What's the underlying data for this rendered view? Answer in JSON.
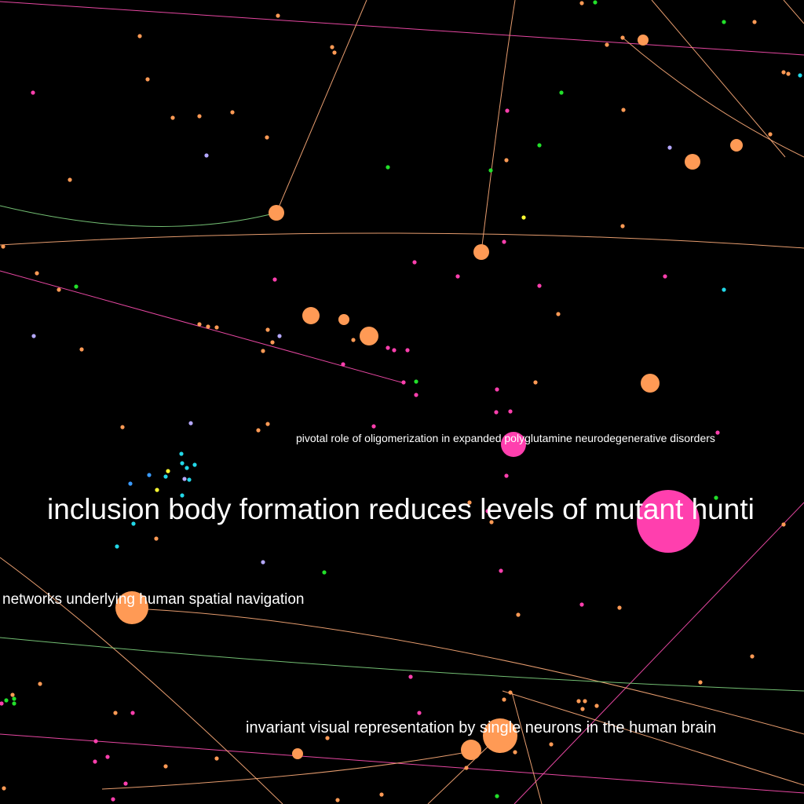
{
  "labels": {
    "main": "inclusion body formation reduces levels of mutant hunti",
    "pivotal": "pivotal role of oligomerization in expanded polyglutamine neurodegenerative disorders",
    "networks": "networks underlying human spatial navigation",
    "invariant": "invariant visual representation by single neurons in the human brain"
  },
  "colors": {
    "orange": "#ff9a55",
    "magenta": "#ff3fae",
    "green": "#22e02a",
    "cyan": "#22d8e8",
    "lavender": "#b5a8ff",
    "yellow": "#ffff33",
    "blue": "#3a9bff",
    "edge_orange": "#ffad7a",
    "edge_magenta": "#ff4fb3",
    "edge_green": "#7fd47f",
    "background": "#000000"
  }
}
